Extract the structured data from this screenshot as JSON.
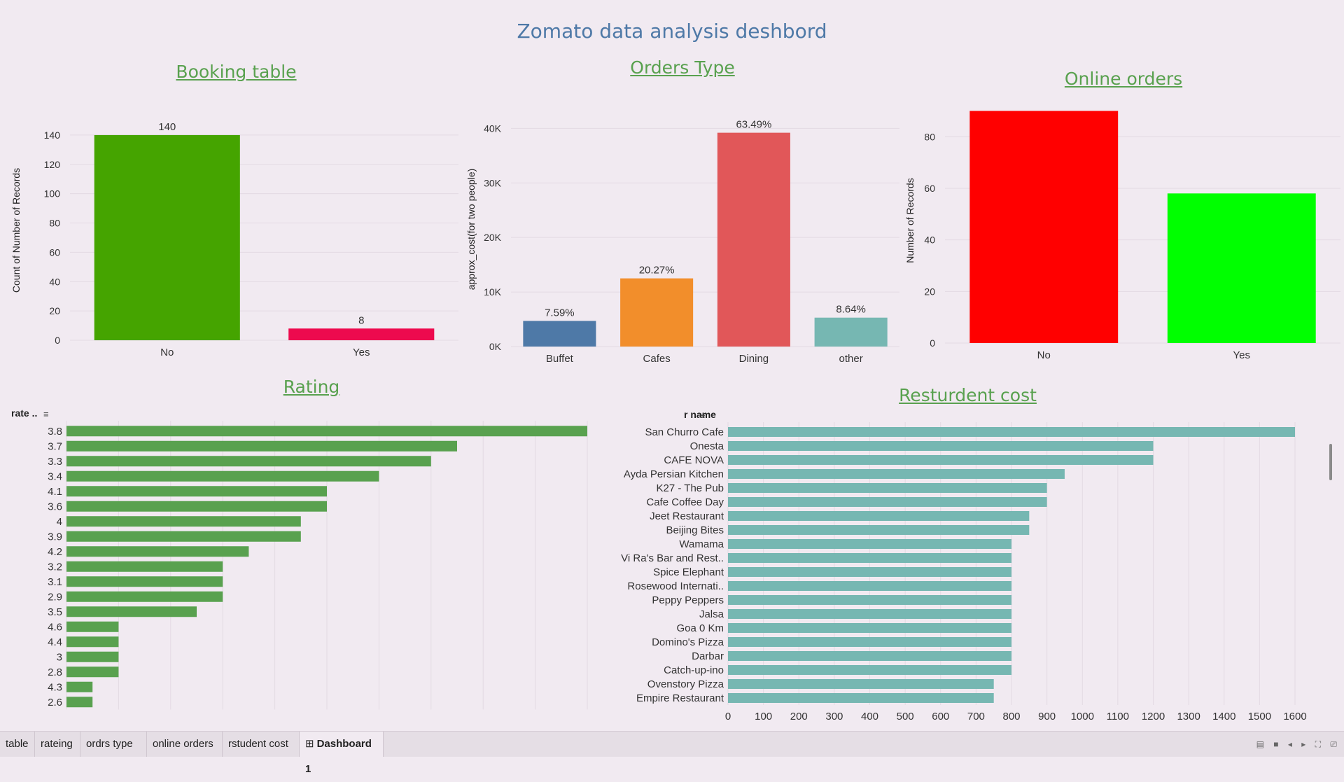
{
  "dashboard": {
    "title": "Zomato data analysis deshbord"
  },
  "tabs": [
    {
      "label": "table",
      "active": false
    },
    {
      "label": "rateing",
      "active": false
    },
    {
      "label": "ordrs type",
      "active": false
    },
    {
      "label": "online orders",
      "active": false
    },
    {
      "label": "rstudent cost",
      "active": false
    },
    {
      "label": "Dashboard 1",
      "active": true
    }
  ],
  "tab_icon": "grid-icon",
  "status_icons": [
    "layout-icon",
    "present-icon",
    "prev-icon",
    "next-icon",
    "fullscreen-icon",
    "share-icon"
  ],
  "chart_data": [
    {
      "type": "bar",
      "title": "Booking table",
      "ylabel": "Count of Number of Records",
      "xlabel": "",
      "categories": [
        "No",
        "Yes"
      ],
      "values": [
        140,
        8
      ],
      "data_labels": [
        "140",
        "8"
      ],
      "ylim": [
        0,
        150
      ],
      "yticks": [
        0,
        20,
        40,
        60,
        80,
        100,
        120,
        140
      ],
      "colors": [
        "#45a400",
        "#ed0a4e"
      ],
      "grid": true
    },
    {
      "type": "bar",
      "title": "Orders Type",
      "ylabel": "approx_cost(for two people)",
      "xlabel": "",
      "categories": [
        "Buffet",
        "Cafes",
        "Dining",
        "other"
      ],
      "values": [
        4700,
        12500,
        39200,
        5300
      ],
      "data_labels": [
        "7.59%",
        "20.27%",
        "63.49%",
        "8.64%"
      ],
      "ylim": [
        0,
        43000
      ],
      "yticks": [
        0,
        10000,
        20000,
        30000,
        40000
      ],
      "ytick_labels": [
        "0K",
        "10K",
        "20K",
        "30K",
        "40K"
      ],
      "colors": [
        "#4e79a7",
        "#f28e2b",
        "#e15759",
        "#76b7b2"
      ],
      "grid": true
    },
    {
      "type": "bar",
      "title": "Online orders",
      "ylabel": "Number of Records",
      "xlabel": "",
      "categories": [
        "No",
        "Yes"
      ],
      "values": [
        90,
        58
      ],
      "ylim": [
        0,
        95
      ],
      "yticks": [
        0,
        20,
        40,
        60,
        80
      ],
      "colors": [
        "#ff0000",
        "#00ff00"
      ],
      "grid": true
    },
    {
      "type": "bar",
      "orientation": "horizontal",
      "title": "Rating",
      "row_header": "rate ..",
      "sort_icon": "sort-icon",
      "categories": [
        "3.8",
        "3.7",
        "3.3",
        "3.4",
        "4.1",
        "3.6",
        "4",
        "3.9",
        "4.2",
        "3.2",
        "3.1",
        "2.9",
        "3.5",
        "4.6",
        "4.4",
        "3",
        "2.8",
        "4.3",
        "2.6"
      ],
      "values": [
        20,
        15,
        14,
        12,
        10,
        10,
        9,
        9,
        7,
        6,
        6,
        6,
        5,
        2,
        2,
        2,
        2,
        1,
        1
      ],
      "xlim": [
        0,
        20
      ],
      "color": "#59a14f",
      "grid": true
    },
    {
      "type": "bar",
      "orientation": "horizontal",
      "title": "Resturdent cost",
      "row_header": "r name",
      "sort_icon": "sort-icon",
      "categories": [
        "San Churro Cafe",
        "Onesta",
        "CAFE NOVA",
        "Ayda Persian Kitchen",
        "K27 - The Pub",
        "Cafe Coffee Day",
        "Jeet Restaurant",
        "Beijing Bites",
        "Wamama",
        "Vi Ra's Bar and Rest..",
        "Spice Elephant",
        "Rosewood Internati..",
        "Peppy Peppers",
        "Jalsa",
        "Goa 0 Km",
        "Domino's Pizza",
        "Darbar",
        "Catch-up-ino",
        "Ovenstory Pizza",
        "Empire Restaurant"
      ],
      "values": [
        1600,
        1200,
        1200,
        950,
        900,
        900,
        850,
        850,
        800,
        800,
        800,
        800,
        800,
        800,
        800,
        800,
        800,
        800,
        750,
        750
      ],
      "xlim": [
        0,
        1600
      ],
      "xticks": [
        0,
        100,
        200,
        300,
        400,
        500,
        600,
        700,
        800,
        900,
        1000,
        1100,
        1200,
        1300,
        1400,
        1500,
        1600
      ],
      "color": "#76b7b2",
      "grid": true
    }
  ]
}
